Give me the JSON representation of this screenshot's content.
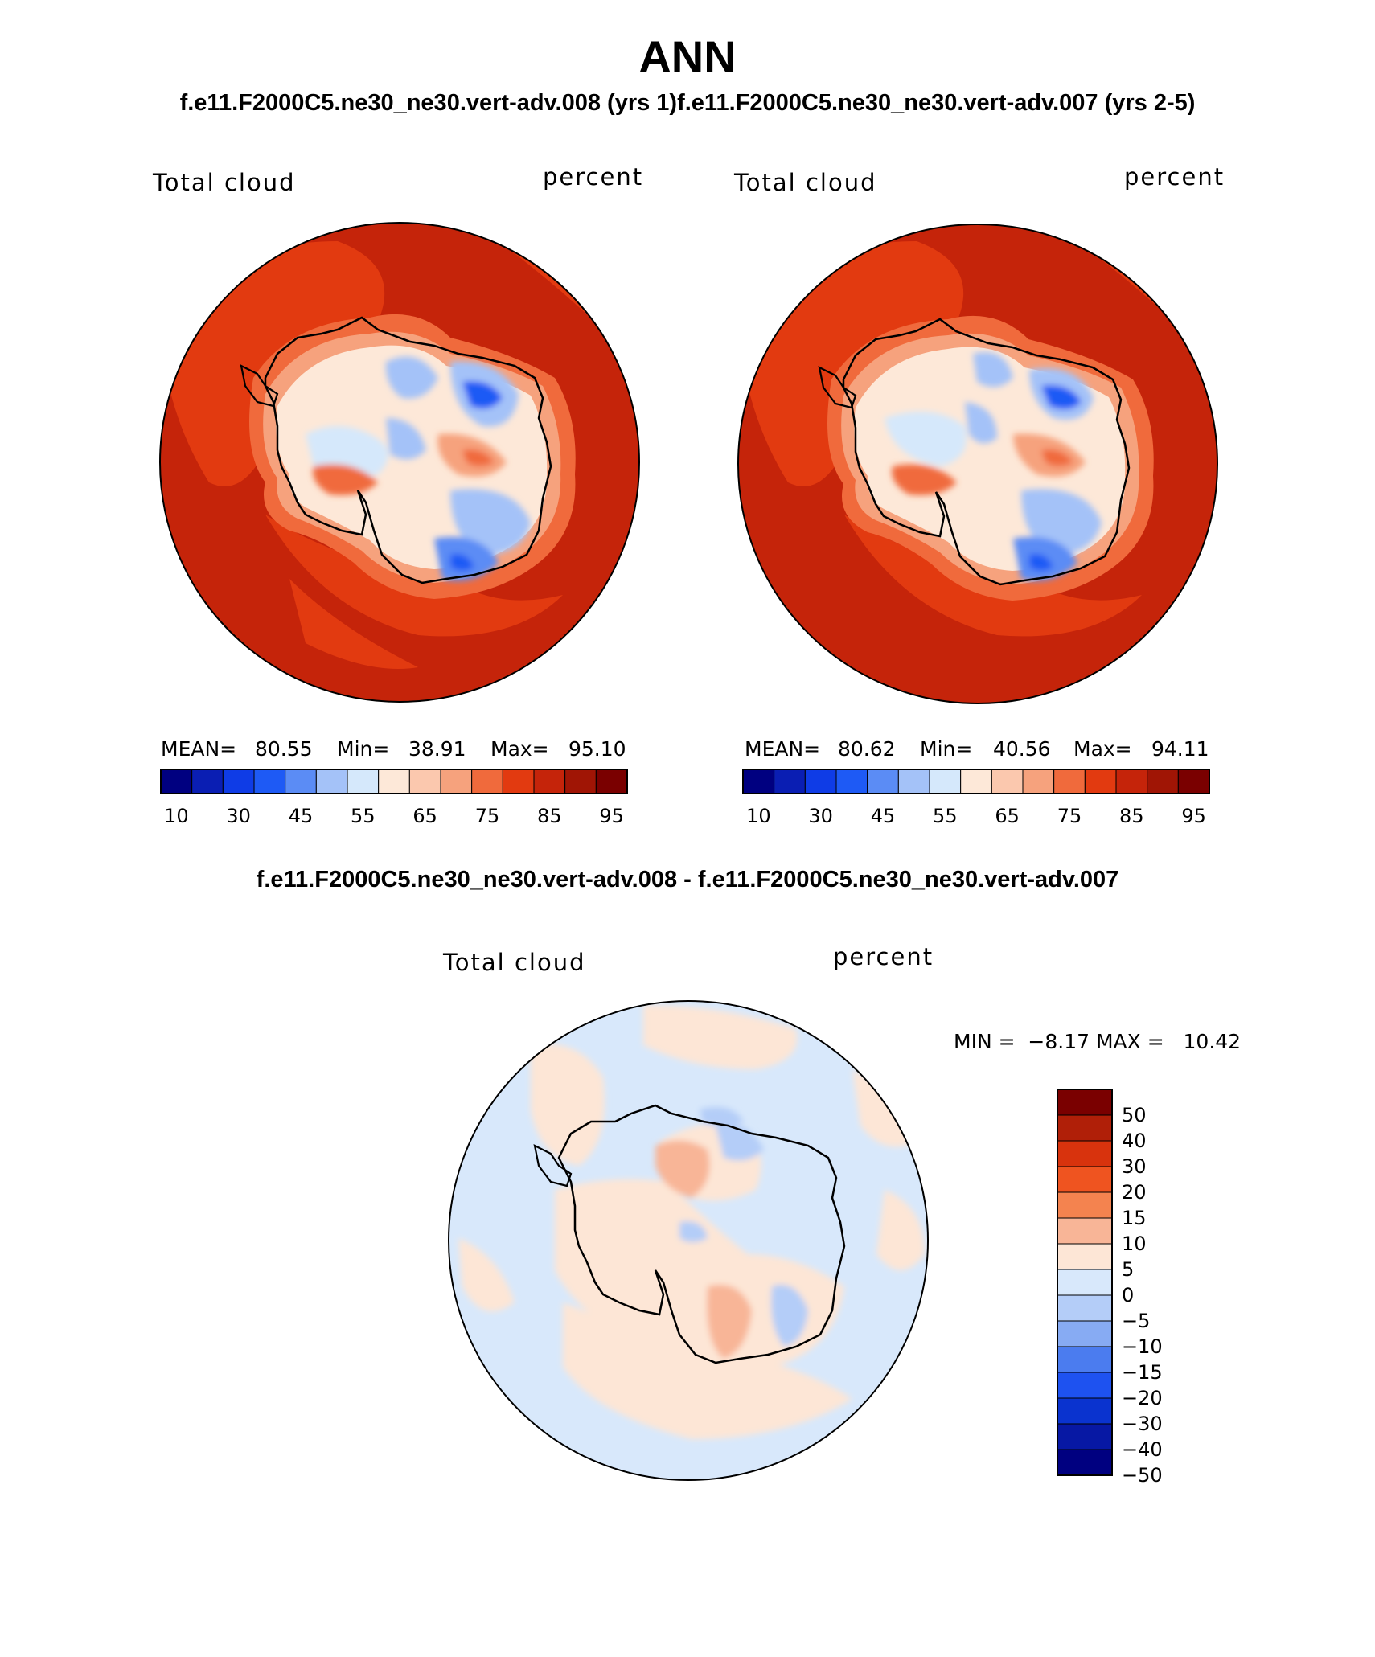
{
  "header": {
    "title": "ANN",
    "subtitle": "f.e11.F2000C5.ne30_ne30.vert-adv.008 (yrs 1)f.e11.F2000C5.ne30_ne30.vert-adv.007 (yrs 2-5)",
    "diff_title": "f.e11.F2000C5.ne30_ne30.vert-adv.008 - f.e11.F2000C5.ne30_ne30.vert-adv.007"
  },
  "panels": [
    {
      "variable": "Total cloud",
      "units": "percent",
      "mean_label": "MEAN=",
      "mean": "80.55",
      "min_label": "Min=",
      "min": "38.91",
      "max_label": "Max=",
      "max": "95.10"
    },
    {
      "variable": "Total cloud",
      "units": "percent",
      "mean_label": "MEAN=",
      "mean": "80.62",
      "min_label": "Min=",
      "min": "40.56",
      "max_label": "Max=",
      "max": "94.11"
    }
  ],
  "diff_panel": {
    "variable": "Total cloud",
    "units": "percent",
    "minmax_text": "MIN =  −8.17 MAX =   10.42"
  },
  "colorbar_abs": {
    "colors": [
      "#000080",
      "#0a1eb3",
      "#0f3ce6",
      "#1e5af5",
      "#5b8cf5",
      "#a4c2f8",
      "#d5e8fb",
      "#fde8d8",
      "#fbc8ae",
      "#f6a27d",
      "#f06a3c",
      "#e23a10",
      "#c5240a",
      "#a01505",
      "#7a0000"
    ],
    "tick_labels": [
      "10",
      "30",
      "45",
      "55",
      "65",
      "75",
      "85",
      "95"
    ]
  },
  "colorbar_diff": {
    "colors_top_to_bottom": [
      "#7a0000",
      "#b01f08",
      "#d8330d",
      "#ef5420",
      "#f4834f",
      "#f8b597",
      "#fde6d6",
      "#d8e8fb",
      "#b4cdf8",
      "#87abf3",
      "#4b7cef",
      "#1e52f0",
      "#0a33cf",
      "#0718a4",
      "#000080"
    ],
    "tick_labels": [
      "50",
      "40",
      "30",
      "20",
      "15",
      "10",
      "5",
      "0",
      "−5",
      "−10",
      "−15",
      "−20",
      "−30",
      "−40",
      "−50"
    ]
  },
  "chart_data": {
    "type": "heatmap",
    "projection": "south-polar-stereographic",
    "maps": [
      {
        "name": "vert-adv.008 (yrs 1)",
        "variable": "Total cloud",
        "units": "percent",
        "mean": 80.55,
        "min": 38.91,
        "max": 95.1
      },
      {
        "name": "vert-adv.007 (yrs 2-5)",
        "variable": "Total cloud",
        "units": "percent",
        "mean": 80.62,
        "min": 40.56,
        "max": 94.11
      },
      {
        "name": "vert-adv.008 - vert-adv.007",
        "variable": "Total cloud",
        "units": "percent",
        "min": -8.17,
        "max": 10.42
      }
    ],
    "abs_levels": [
      10,
      20,
      30,
      40,
      45,
      50,
      55,
      60,
      65,
      70,
      75,
      80,
      85,
      90,
      95
    ],
    "diff_levels": [
      -50,
      -40,
      -30,
      -20,
      -15,
      -10,
      -5,
      0,
      5,
      10,
      15,
      20,
      30,
      40,
      50
    ]
  }
}
